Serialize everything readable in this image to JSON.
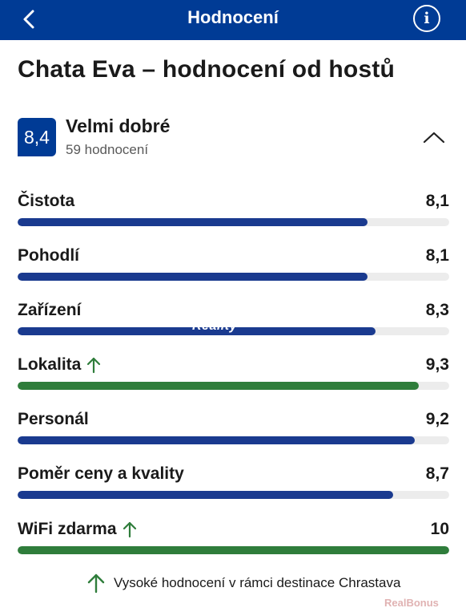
{
  "topbar": {
    "title": "Hodnocení",
    "back_icon": "chevron-left-icon",
    "info_icon": "info-icon",
    "info_glyph": "i",
    "background": "#003b95"
  },
  "page_title": "Chata Eva – hodnocení od hostů",
  "summary": {
    "score": "8,4",
    "label": "Velmi dobré",
    "count": "59 hodnocení",
    "toggle_icon": "chevron-up-icon"
  },
  "categories": [
    {
      "label": "Čistota",
      "value": "8,1",
      "score": 8.1,
      "highlight": false,
      "color": "#1a3a8f"
    },
    {
      "label": "Pohodlí",
      "value": "8,1",
      "score": 8.1,
      "highlight": false,
      "color": "#1a3a8f"
    },
    {
      "label": "Zařízení",
      "value": "8,3",
      "score": 8.3,
      "highlight": false,
      "color": "#1a3a8f"
    },
    {
      "label": "Lokalita",
      "value": "9,3",
      "score": 9.3,
      "highlight": true,
      "color": "#2f7d3b"
    },
    {
      "label": "Personál",
      "value": "9,2",
      "score": 9.2,
      "highlight": false,
      "color": "#1a3a8f"
    },
    {
      "label": "Poměr ceny a kvality",
      "value": "8,7",
      "score": 8.7,
      "highlight": false,
      "color": "#1a3a8f"
    },
    {
      "label": "WiFi zdarma",
      "value": "10",
      "score": 10,
      "highlight": true,
      "color": "#2f7d3b"
    }
  ],
  "footnote": {
    "text": "Vysoké hodnocení v rámci destinace Chrastava",
    "icon": "arrow-up-icon"
  },
  "watermarks": {
    "mid": "Reality",
    "corner": "RealBonus"
  }
}
